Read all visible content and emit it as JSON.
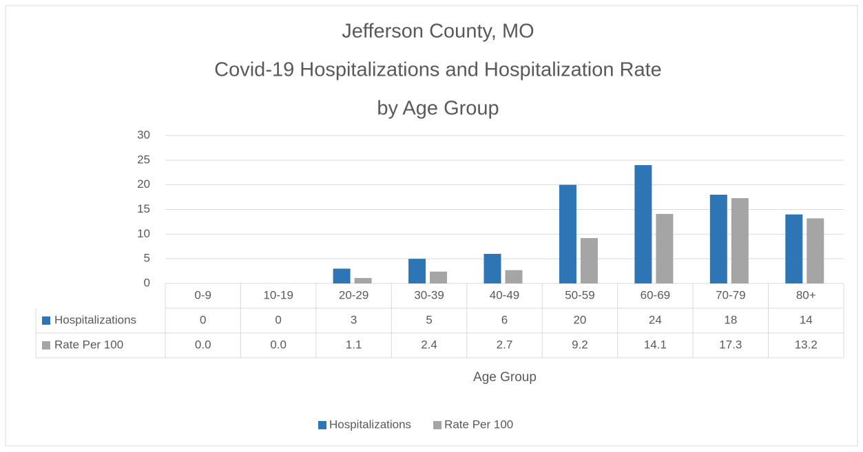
{
  "chart_data": {
    "type": "bar",
    "title": [
      "Jefferson County, MO",
      "Covid-19 Hospitalizations and Hospitalization Rate",
      "by Age Group"
    ],
    "x_label": "Age Group",
    "categories": [
      "0-9",
      "10-19",
      "20-29",
      "30-39",
      "40-49",
      "50-59",
      "60-69",
      "70-79",
      "80+"
    ],
    "series": [
      {
        "name": "Hospitalizations",
        "color": "#2e75b6",
        "values": [
          0,
          0,
          3,
          5,
          6,
          20,
          24,
          18,
          14
        ]
      },
      {
        "name": "Rate Per 100",
        "color": "#a5a5a5",
        "values": [
          0,
          0,
          1.1,
          2.4,
          2.7,
          9.2,
          14.1,
          17.3,
          13.2
        ],
        "value_labels": [
          "0.0",
          "0.0",
          "1.1",
          "2.4",
          "2.7",
          "9.2",
          "14.1",
          "17.3",
          "13.2"
        ]
      }
    ],
    "ylim": [
      0,
      30
    ],
    "yticks": [
      0,
      5,
      10,
      15,
      20,
      25,
      30
    ],
    "grid": true,
    "legend": "bottom"
  }
}
